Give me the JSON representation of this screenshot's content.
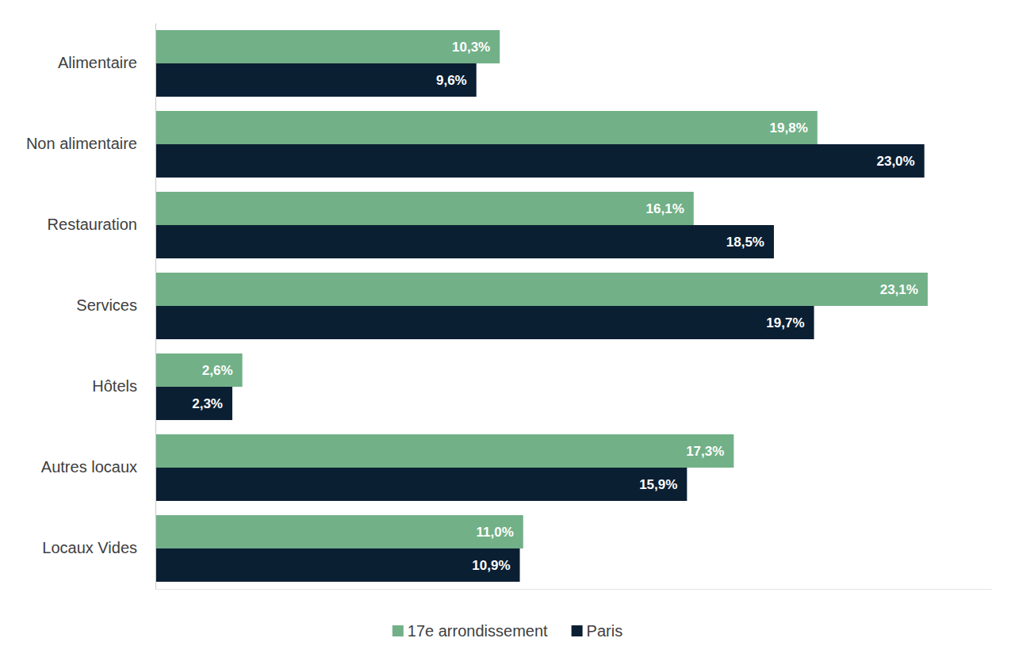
{
  "chart_data": {
    "type": "bar",
    "orientation": "horizontal",
    "categories": [
      "Alimentaire",
      "Non alimentaire",
      "Restauration",
      "Services",
      "Hôtels",
      "Autres locaux",
      "Locaux Vides"
    ],
    "series": [
      {
        "name": "17e arrondissement",
        "color": "#72b087",
        "values": [
          10.3,
          19.8,
          16.1,
          23.1,
          2.6,
          17.3,
          11.0
        ],
        "value_labels": [
          "10,3%",
          "19,8%",
          "16,1%",
          "23,1%",
          "2,6%",
          "17,3%",
          "11,0%"
        ]
      },
      {
        "name": "Paris",
        "color": "#0b1f33",
        "values": [
          9.6,
          23.0,
          18.5,
          19.7,
          2.3,
          15.9,
          10.9
        ],
        "value_labels": [
          "9,6%",
          "23,0%",
          "18,5%",
          "19,7%",
          "2,3%",
          "15,9%",
          "10,9%"
        ]
      }
    ],
    "xlim": [
      0,
      25
    ],
    "xticks": [],
    "grid": false,
    "data_labels": true,
    "tick_labels": "y",
    "legend": "bottom"
  }
}
